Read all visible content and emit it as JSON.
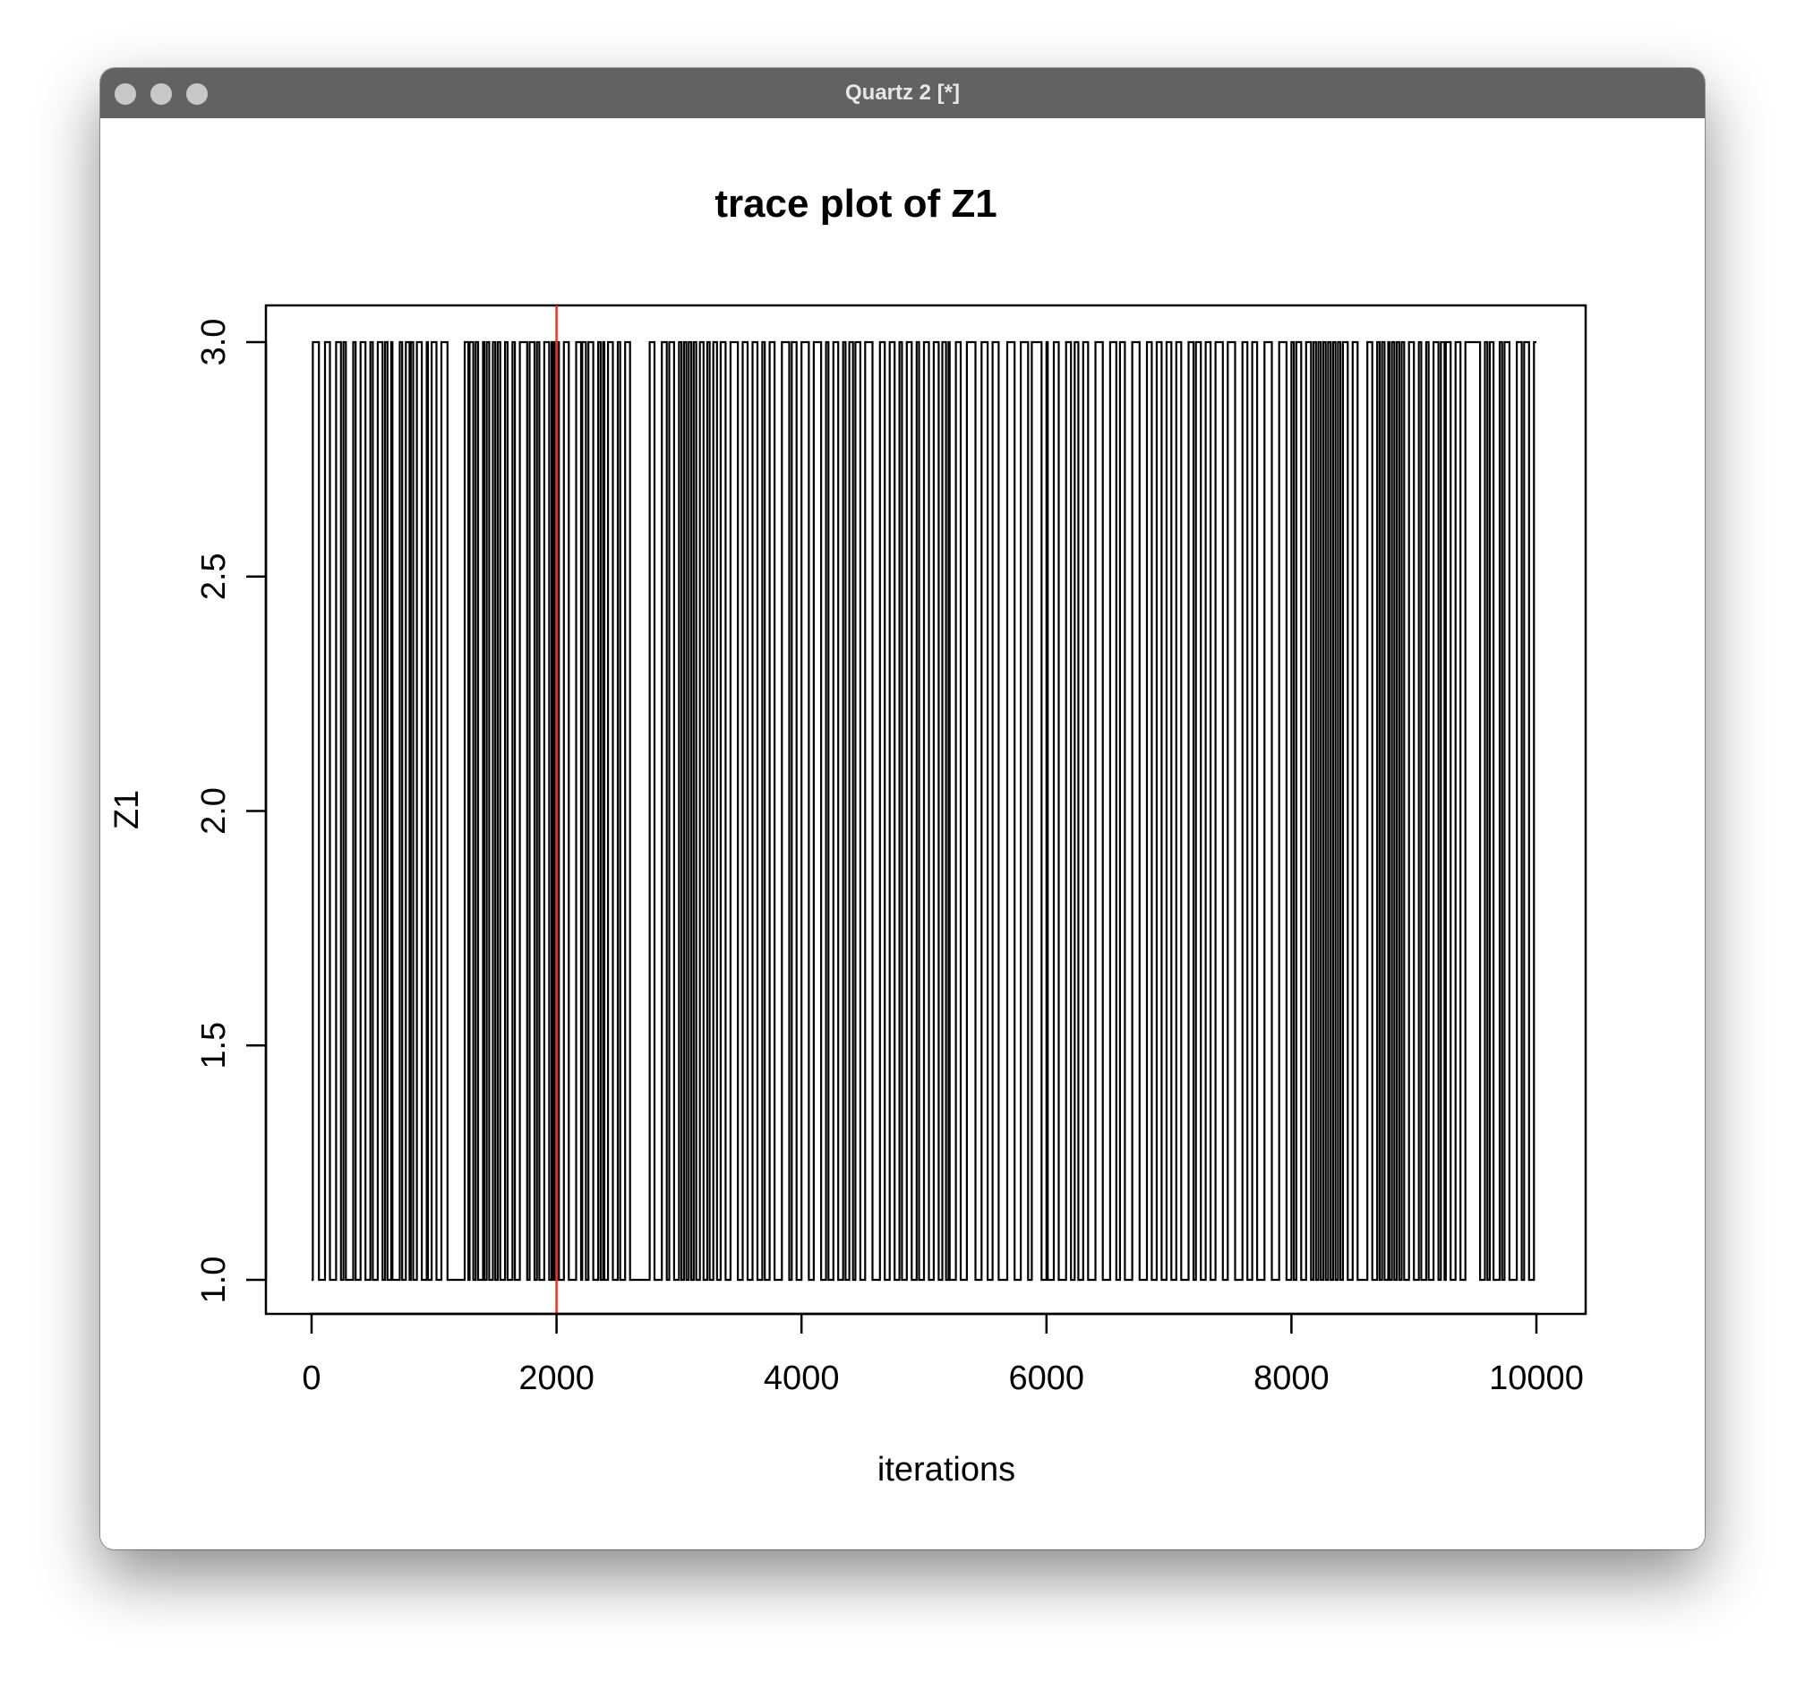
{
  "window": {
    "title": "Quartz 2 [*]",
    "buttons": [
      "close-icon",
      "minimize-icon",
      "zoom-icon"
    ],
    "button_color": "#c8c8c8",
    "titlebar_color": "#626262"
  },
  "chart_data": {
    "type": "line",
    "title": "trace plot of Z1",
    "xlabel": "iterations",
    "ylabel": "Z1",
    "xlim": [
      0,
      10000
    ],
    "ylim": [
      1.0,
      3.0
    ],
    "x_ticks": [
      0,
      2000,
      4000,
      6000,
      8000,
      10000
    ],
    "x_tick_labels": [
      "0",
      "2000",
      "4000",
      "6000",
      "8000",
      "10000"
    ],
    "y_ticks": [
      1.0,
      1.5,
      2.0,
      2.5,
      3.0
    ],
    "y_tick_labels": [
      "1.0",
      "1.5",
      "2.0",
      "2.5",
      "3.0"
    ],
    "grid": false,
    "series_color": "#000000",
    "vline": {
      "x": 2000,
      "color": "#e8372c"
    },
    "transitions": [
      10,
      60,
      110,
      150,
      200,
      240,
      260,
      280,
      340,
      360,
      400,
      440,
      480,
      500,
      540,
      580,
      600,
      620,
      650,
      660,
      720,
      740,
      770,
      800,
      810,
      830,
      860,
      900,
      940,
      950,
      980,
      1020,
      1060,
      1110,
      1250,
      1280,
      1290,
      1320,
      1340,
      1360,
      1400,
      1410,
      1430,
      1450,
      1480,
      1500,
      1520,
      1540,
      1580,
      1600,
      1640,
      1660,
      1700,
      1760,
      1780,
      1820,
      1840,
      1860,
      1900,
      1940,
      1960,
      1975,
      1985,
      1995,
      2005,
      2020,
      2060,
      2100,
      2160,
      2200,
      2210,
      2240,
      2260,
      2300,
      2340,
      2360,
      2380,
      2390,
      2420,
      2460,
      2500,
      2520,
      2560,
      2600,
      2760,
      2800,
      2860,
      2900,
      2920,
      2960,
      3000,
      3020,
      3040,
      3060,
      3080,
      3100,
      3120,
      3140,
      3170,
      3200,
      3230,
      3250,
      3280,
      3310,
      3340,
      3380,
      3420,
      3480,
      3520,
      3560,
      3600,
      3640,
      3680,
      3700,
      3740,
      3780,
      3840,
      3900,
      3920,
      3960,
      4000,
      4060,
      4100,
      4160,
      4200,
      4220,
      4260,
      4300,
      4340,
      4360,
      4390,
      4420,
      4440,
      4480,
      4520,
      4580,
      4640,
      4680,
      4720,
      4760,
      4800,
      4820,
      4860,
      4900,
      4940,
      4960,
      5000,
      5040,
      5080,
      5120,
      5150,
      5180,
      5200,
      5210,
      5260,
      5300,
      5350,
      5420,
      5470,
      5520,
      5560,
      5610,
      5680,
      5740,
      5790,
      5850,
      5880,
      5960,
      6000,
      6010,
      6060,
      6100,
      6160,
      6200,
      6230,
      6260,
      6300,
      6340,
      6400,
      6460,
      6520,
      6570,
      6600,
      6640,
      6700,
      6760,
      6820,
      6860,
      6900,
      6940,
      6980,
      7020,
      7060,
      7100,
      7160,
      7200,
      7220,
      7260,
      7300,
      7340,
      7380,
      7440,
      7480,
      7540,
      7600,
      7640,
      7680,
      7720,
      7780,
      7840,
      7900,
      7960,
      8000,
      8020,
      8040,
      8080,
      8120,
      8160,
      8180,
      8200,
      8220,
      8240,
      8260,
      8280,
      8300,
      8320,
      8340,
      8360,
      8380,
      8400,
      8420,
      8460,
      8500,
      8540,
      8620,
      8660,
      8700,
      8720,
      8740,
      8760,
      8790,
      8800,
      8820,
      8840,
      8860,
      8880,
      8900,
      8920,
      8960,
      9000,
      9040,
      9060,
      9100,
      9120,
      9160,
      9200,
      9220,
      9250,
      9260,
      9300,
      9340,
      9380,
      9420,
      9540,
      9580,
      9600,
      9620,
      9650,
      9700,
      9720,
      9740,
      9780,
      9840,
      9880,
      9900,
      9940,
      9980
    ]
  }
}
